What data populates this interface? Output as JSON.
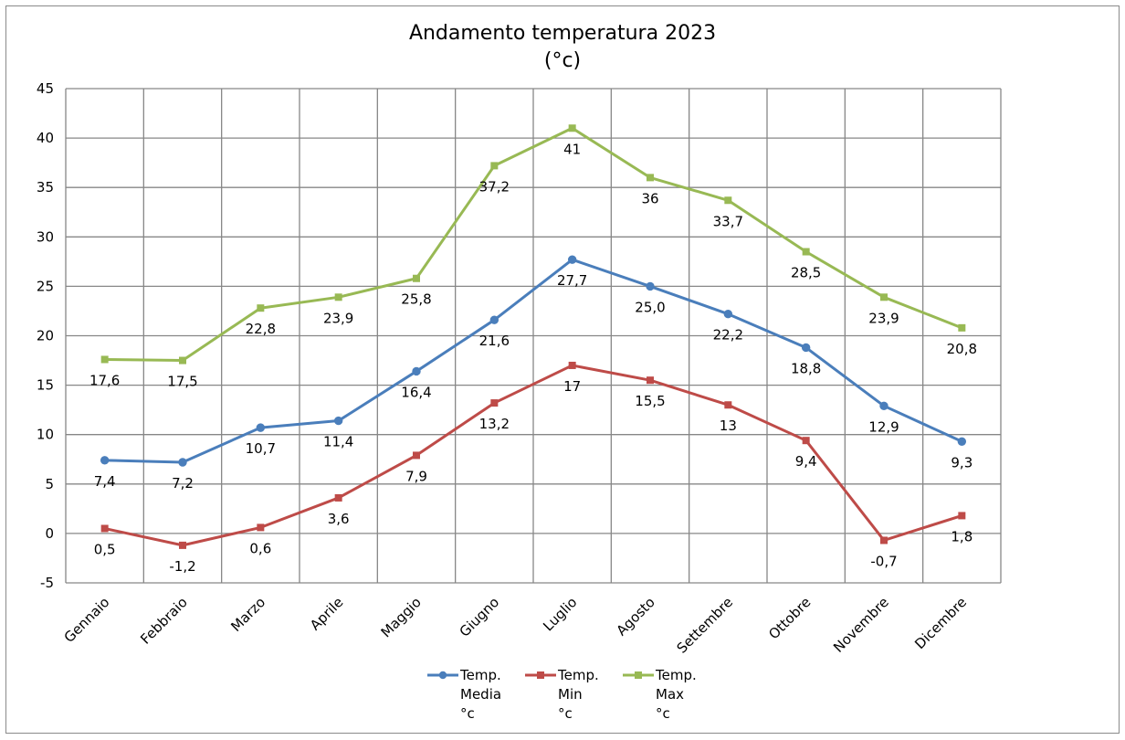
{
  "chart_data": {
    "type": "line",
    "title": "Andamento temperatura 2023",
    "subtitle": "(°c)",
    "xlabel": "",
    "ylabel": "",
    "ylim": [
      -5,
      45
    ],
    "ytick_step": 5,
    "grid": true,
    "legend_position": "bottom",
    "categories": [
      "Gennaio",
      "Febbraio",
      "Marzo",
      "Aprile",
      "Maggio",
      "Giugno",
      "Luglio",
      "Agosto",
      "Settembre",
      "Ottobre",
      "Novembre",
      "Dicembre"
    ],
    "series": [
      {
        "name": "Temp. Media °c",
        "legend_lines": [
          "Temp.",
          "Media",
          "°c"
        ],
        "color": "#4a7ebb",
        "marker": "circle",
        "values": [
          7.4,
          7.2,
          10.7,
          11.4,
          16.4,
          21.6,
          27.7,
          25.0,
          22.2,
          18.8,
          12.9,
          9.3
        ],
        "labels": [
          "7,4",
          "7,2",
          "10,7",
          "11,4",
          "16,4",
          "21,6",
          "27,7",
          "25,0",
          "22,2",
          "18,8",
          "12,9",
          "9,3"
        ]
      },
      {
        "name": "Temp. Min °c",
        "legend_lines": [
          "Temp.",
          "Min",
          "°c"
        ],
        "color": "#be4b48",
        "marker": "square",
        "values": [
          0.5,
          -1.2,
          0.6,
          3.6,
          7.9,
          13.2,
          17,
          15.5,
          13,
          9.4,
          -0.7,
          1.8
        ],
        "labels": [
          "0,5",
          "-1,2",
          "0,6",
          "3,6",
          "7,9",
          "13,2",
          "17",
          "15,5",
          "13",
          "9,4",
          "-0,7",
          "1,8"
        ]
      },
      {
        "name": "Temp. Max °c",
        "legend_lines": [
          "Temp.",
          "Max",
          "°c"
        ],
        "color": "#98b954",
        "marker": "square",
        "values": [
          17.6,
          17.5,
          22.8,
          23.9,
          25.8,
          37.2,
          41,
          36,
          33.7,
          28.5,
          23.9,
          20.8
        ],
        "labels": [
          "17,6",
          "17,5",
          "22,8",
          "23,9",
          "25,8",
          "37,2",
          "41",
          "36",
          "33,7",
          "28,5",
          "23,9",
          "20,8"
        ]
      }
    ]
  }
}
